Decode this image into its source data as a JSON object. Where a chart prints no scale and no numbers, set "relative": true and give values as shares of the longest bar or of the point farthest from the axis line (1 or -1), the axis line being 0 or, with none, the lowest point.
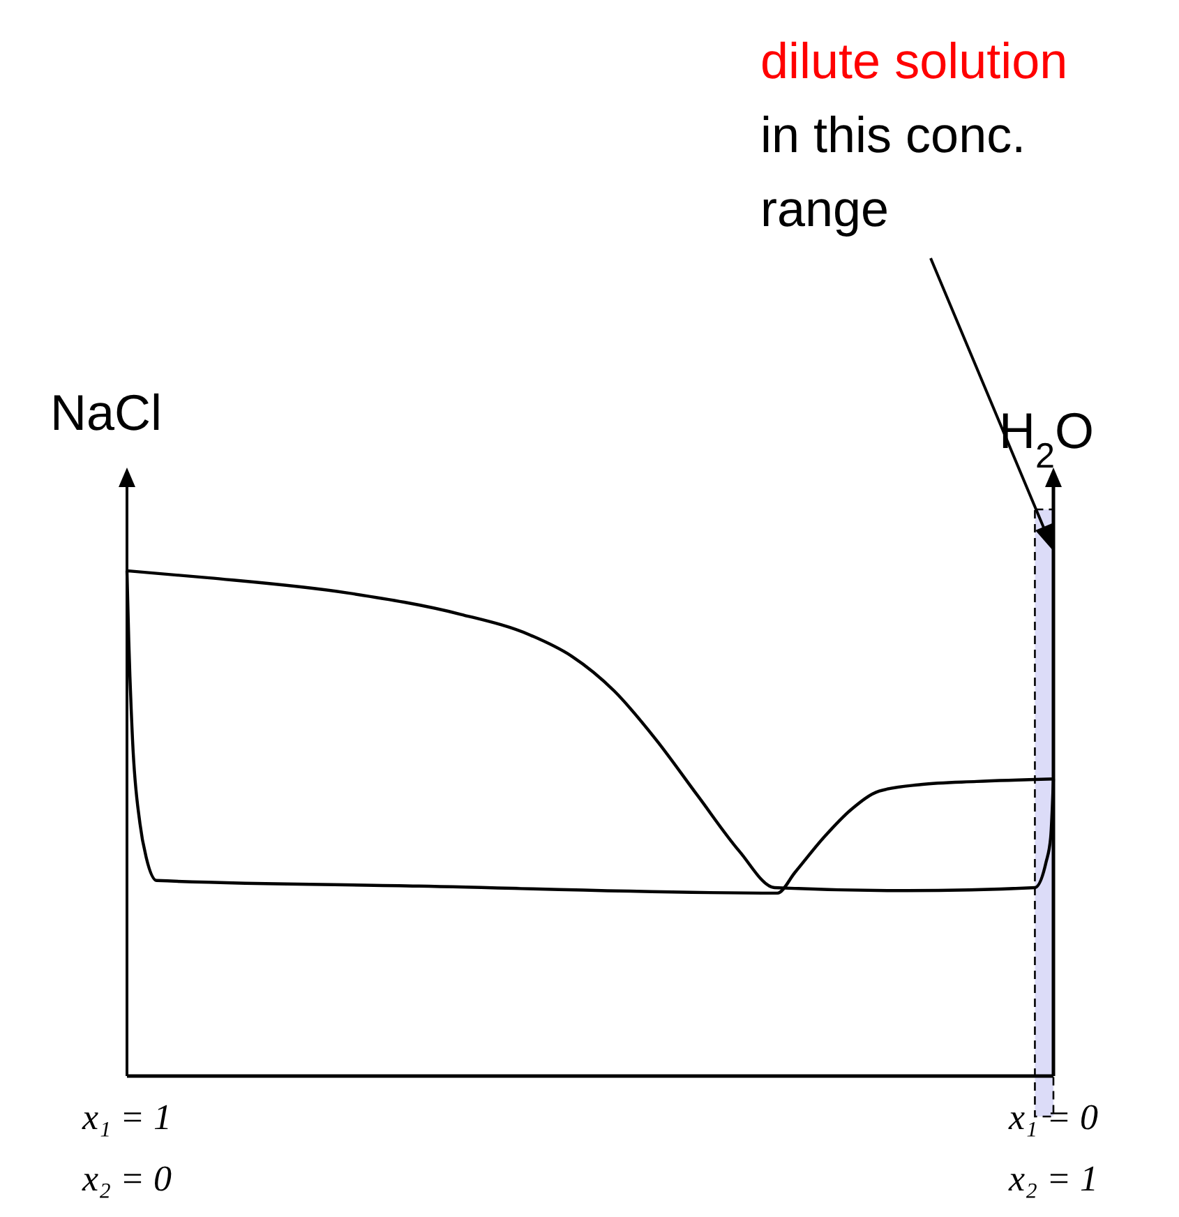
{
  "chart_data": {
    "type": "line",
    "relative": true,
    "ylabel": "NaCl",
    "y2label": "H$_{2}$O",
    "xlim": [
      0,
      1
    ],
    "xticks": [
      {
        "value": 0,
        "label": "x₂ = 0"
      },
      {
        "value": 1,
        "label": "x₂ = 1"
      }
    ],
    "x2lim": [
      1,
      0
    ],
    "x2ticks": [
      {
        "value": 1,
        "label": "x₁ = 1"
      },
      {
        "value": 0,
        "label": "x₁ = 0"
      }
    ],
    "series": [
      {
        "color": "#000000",
        "x": [
          0,
          0.089,
          0.239,
          0.36,
          0.435,
          0.48,
          0.526,
          0.571,
          0.616,
          0.661,
          0.699,
          0.842,
          0.98,
          0.992,
          0.997,
          1
        ],
        "values": [
          1,
          0.986,
          0.956,
          0.914,
          0.873,
          0.831,
          0.762,
          0.666,
          0.555,
          0.445,
          0.373,
          0.367,
          0.373,
          0.423,
          0.472,
          0.588
        ]
      },
      {
        "color": "#000000",
        "x": [
          0,
          0.002,
          0.006,
          0.014,
          0.021,
          0.032,
          0.315,
          0.702,
          0.721,
          0.752,
          0.782,
          0.812,
          0.857,
          0.917,
          1
        ],
        "values": [
          1,
          0.859,
          0.666,
          0.5,
          0.431,
          0.387,
          0.376,
          0.362,
          0.403,
          0.472,
          0.528,
          0.564,
          0.577,
          0.583,
          0.588
        ]
      }
    ],
    "bands": [
      {
        "axis": "x",
        "from": 0.98,
        "to": 1,
        "color": "#dcdcf8"
      }
    ],
    "annotations": [
      "dilute solution",
      "in this conc.\nrange"
    ],
    "line_style": "solid"
  }
}
